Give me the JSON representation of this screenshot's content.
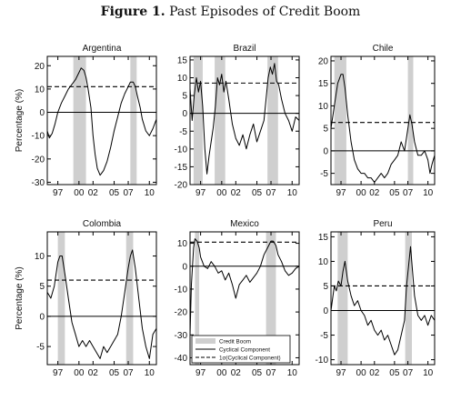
{
  "figure": {
    "label": "Figure 1.",
    "title": "Past Episodes of Credit Boom"
  },
  "colors": {
    "shade": "#cfcfcf",
    "line": "#000000"
  },
  "legend": {
    "boom": "Credit Boom",
    "cyclical": "Cyclical Component",
    "threshold": "1σ(Cyclical Component)"
  },
  "chart_data": [
    {
      "type": "line",
      "title": "Argentina",
      "ylabel": "Percentage (%)",
      "ylim": [
        -31,
        24
      ],
      "yticks": [
        -30,
        -20,
        -10,
        0,
        10,
        20
      ],
      "xlim": [
        1995.5,
        2011.0
      ],
      "xticks": [
        1997,
        2000,
        2002,
        2005,
        2007,
        2010
      ],
      "xticklabels": [
        "97",
        "00",
        "02",
        "05",
        "07",
        "10"
      ],
      "threshold": 11,
      "booms": [
        [
          1999.2,
          2001.0
        ],
        [
          2007.3,
          2008.2
        ]
      ],
      "series": [
        {
          "x": [
            1995.5,
            1995.8,
            1996.2,
            1996.6,
            1997.0,
            1997.5,
            1998.0,
            1998.5,
            1999.0,
            1999.5,
            2000.0,
            2000.3,
            2000.7,
            2001.0,
            2001.3,
            2001.7,
            2002.0,
            2002.3,
            2002.6,
            2003.0,
            2003.5,
            2004.0,
            2004.5,
            2005.0,
            2005.5,
            2006.0,
            2006.5,
            2007.0,
            2007.3,
            2007.7,
            2008.0,
            2008.3,
            2008.7,
            2009.0,
            2009.5,
            2010.0,
            2010.5,
            2011.0
          ],
          "y": [
            -8,
            -11,
            -9,
            -5,
            0,
            4,
            7,
            10,
            12,
            14,
            17,
            19,
            18,
            15,
            10,
            2,
            -10,
            -18,
            -24,
            -27,
            -25,
            -21,
            -15,
            -8,
            -2,
            4,
            8,
            11,
            13,
            13,
            11,
            7,
            2,
            -3,
            -8,
            -10,
            -7,
            -3
          ]
        }
      ]
    },
    {
      "type": "line",
      "title": "Brazil",
      "ylim": [
        -20,
        16
      ],
      "yticks": [
        -20,
        -15,
        -10,
        -5,
        0,
        5,
        10,
        15
      ],
      "xlim": [
        1995.5,
        2011.0
      ],
      "xticks": [
        1997,
        2000,
        2002,
        2005,
        2007,
        2010
      ],
      "xticklabels": [
        "97",
        "00",
        "02",
        "05",
        "07",
        "10"
      ],
      "threshold": 8.5,
      "booms": [
        [
          1996.0,
          1997.3
        ],
        [
          1999.0,
          2000.5
        ],
        [
          2006.5,
          2008.0
        ]
      ],
      "series": [
        {
          "x": [
            1995.5,
            1995.8,
            1996.1,
            1996.4,
            1996.7,
            1997.0,
            1997.3,
            1997.6,
            1997.9,
            1998.2,
            1998.5,
            1998.8,
            1999.1,
            1999.4,
            1999.7,
            2000.0,
            2000.3,
            2000.6,
            2001.0,
            2001.5,
            2002.0,
            2002.5,
            2003.0,
            2003.5,
            2004.0,
            2004.5,
            2005.0,
            2005.5,
            2006.0,
            2006.3,
            2006.6,
            2006.9,
            2007.2,
            2007.5,
            2007.8,
            2008.1,
            2008.5,
            2009.0,
            2009.5,
            2010.0,
            2010.5,
            2011.0
          ],
          "y": [
            7,
            -2,
            5,
            10,
            6,
            9,
            2,
            -10,
            -17,
            -12,
            -8,
            -4,
            2,
            10,
            8,
            11,
            6,
            9,
            4,
            -3,
            -7,
            -9,
            -6,
            -10,
            -6,
            -3,
            -8,
            -5,
            -2,
            4,
            10,
            13,
            11,
            14,
            9,
            8,
            4,
            0,
            -2,
            -5,
            -1,
            -2
          ]
        }
      ]
    },
    {
      "type": "line",
      "title": "Chile",
      "ylim": [
        -7.5,
        21
      ],
      "yticks": [
        -5,
        0,
        5,
        10,
        15,
        20
      ],
      "xlim": [
        1995.5,
        2011.0
      ],
      "xticks": [
        1997,
        2000,
        2002,
        2005,
        2007,
        2010
      ],
      "xticklabels": [
        "97",
        "00",
        "02",
        "05",
        "07",
        "10"
      ],
      "threshold": 6.3,
      "booms": [
        [
          1996.0,
          1997.8
        ],
        [
          2007.0,
          2007.8
        ]
      ],
      "series": [
        {
          "x": [
            1995.5,
            1996.0,
            1996.5,
            1997.0,
            1997.3,
            1997.6,
            1998.0,
            1998.5,
            1999.0,
            1999.5,
            2000.0,
            2000.5,
            2001.0,
            2001.5,
            2002.0,
            2002.5,
            2003.0,
            2003.5,
            2004.0,
            2004.5,
            2005.0,
            2005.5,
            2006.0,
            2006.5,
            2007.0,
            2007.3,
            2007.6,
            2008.0,
            2008.5,
            2009.0,
            2009.5,
            2010.0,
            2010.3,
            2010.6,
            2011.0
          ],
          "y": [
            5,
            10,
            15,
            17,
            17,
            14,
            8,
            2,
            -2,
            -4,
            -5,
            -5,
            -6,
            -6,
            -7,
            -6,
            -5,
            -6,
            -5,
            -3,
            -2,
            -1,
            2,
            0,
            5,
            8,
            6,
            2,
            -1,
            -1,
            0,
            -2,
            -5,
            -3,
            -1
          ]
        }
      ]
    },
    {
      "type": "line",
      "title": "Colombia",
      "ylabel": "Percentage (%)",
      "ylim": [
        -8,
        14
      ],
      "yticks": [
        -5,
        0,
        5,
        10
      ],
      "xlim": [
        1995.5,
        2011.0
      ],
      "xticks": [
        1997,
        2000,
        2002,
        2005,
        2007,
        2010
      ],
      "xticklabels": [
        "97",
        "00",
        "02",
        "05",
        "07",
        "10"
      ],
      "threshold": 6,
      "booms": [
        [
          1997.0,
          1998.0
        ],
        [
          2006.7,
          2007.7
        ]
      ],
      "series": [
        {
          "x": [
            1995.5,
            1996.0,
            1996.5,
            1997.0,
            1997.3,
            1997.6,
            1998.0,
            1998.5,
            1999.0,
            1999.5,
            2000.0,
            2000.5,
            2001.0,
            2001.5,
            2002.0,
            2002.5,
            2003.0,
            2003.5,
            2004.0,
            2004.5,
            2005.0,
            2005.5,
            2006.0,
            2006.5,
            2007.0,
            2007.3,
            2007.6,
            2008.0,
            2008.5,
            2009.0,
            2009.5,
            2010.0,
            2010.5,
            2011.0
          ],
          "y": [
            4,
            3,
            5,
            9,
            10,
            10,
            7,
            3,
            -1,
            -3,
            -5,
            -4,
            -5,
            -4,
            -5,
            -6,
            -7,
            -5,
            -6,
            -5,
            -4,
            -3,
            0,
            4,
            8,
            10,
            11,
            8,
            3,
            -2,
            -5,
            -7,
            -3,
            -2
          ]
        }
      ]
    },
    {
      "type": "line",
      "title": "Mexico",
      "ylim": [
        -43,
        15
      ],
      "yticks": [
        -40,
        -30,
        -20,
        -10,
        0,
        10
      ],
      "xlim": [
        1995.5,
        2011.0
      ],
      "xticks": [
        1997,
        2000,
        2002,
        2005,
        2007,
        2010
      ],
      "xticklabels": [
        "97",
        "00",
        "02",
        "05",
        "07",
        "10"
      ],
      "threshold": 10.5,
      "booms": [
        [
          1996.2,
          1996.8
        ],
        [
          2006.3,
          2007.7
        ]
      ],
      "series": [
        {
          "x": [
            1995.5,
            1995.7,
            1996.0,
            1996.2,
            1996.5,
            1996.8,
            1997.0,
            1997.5,
            1998.0,
            1998.5,
            1999.0,
            1999.5,
            2000.0,
            2000.5,
            2001.0,
            2001.5,
            2002.0,
            2002.5,
            2003.0,
            2003.5,
            2004.0,
            2004.5,
            2005.0,
            2005.5,
            2006.0,
            2006.5,
            2007.0,
            2007.3,
            2007.7,
            2008.0,
            2008.5,
            2009.0,
            2009.5,
            2010.0,
            2010.5,
            2011.0
          ],
          "y": [
            -30,
            -8,
            8,
            12,
            11,
            8,
            4,
            0,
            -1,
            2,
            0,
            -3,
            -2,
            -6,
            -3,
            -8,
            -14,
            -8,
            -6,
            -4,
            -7,
            -5,
            -3,
            0,
            5,
            8,
            11,
            11,
            9,
            5,
            2,
            -2,
            -4,
            -3,
            -1,
            0
          ]
        }
      ]
    },
    {
      "type": "line",
      "title": "Peru",
      "ylim": [
        -11,
        16
      ],
      "yticks": [
        -10,
        -5,
        0,
        5,
        10,
        15
      ],
      "xlim": [
        1995.5,
        2011.0
      ],
      "xticks": [
        1997,
        2000,
        2002,
        2005,
        2007,
        2010
      ],
      "xticklabels": [
        "97",
        "00",
        "02",
        "05",
        "07",
        "10"
      ],
      "threshold": 5,
      "booms": [
        [
          1996.5,
          1998.0
        ],
        [
          2006.6,
          2007.6
        ]
      ],
      "series": [
        {
          "x": [
            1995.5,
            1995.8,
            1996.0,
            1996.3,
            1996.6,
            1997.0,
            1997.3,
            1997.6,
            1998.0,
            1998.5,
            1999.0,
            1999.5,
            2000.0,
            2000.5,
            2001.0,
            2001.5,
            2002.0,
            2002.5,
            2003.0,
            2003.5,
            2004.0,
            2004.5,
            2005.0,
            2005.5,
            2006.0,
            2006.5,
            2006.8,
            2007.1,
            2007.4,
            2007.7,
            2008.0,
            2008.5,
            2009.0,
            2009.5,
            2010.0,
            2010.5,
            2011.0
          ],
          "y": [
            0,
            3,
            5,
            4,
            6,
            5,
            8,
            10,
            6,
            3,
            1,
            2,
            0,
            -1,
            -3,
            -2,
            -4,
            -5,
            -4,
            -6,
            -5,
            -7,
            -9,
            -8,
            -5,
            -2,
            5,
            9,
            13,
            8,
            3,
            -1,
            -2,
            -1,
            -3,
            -1,
            -2
          ]
        }
      ]
    }
  ]
}
